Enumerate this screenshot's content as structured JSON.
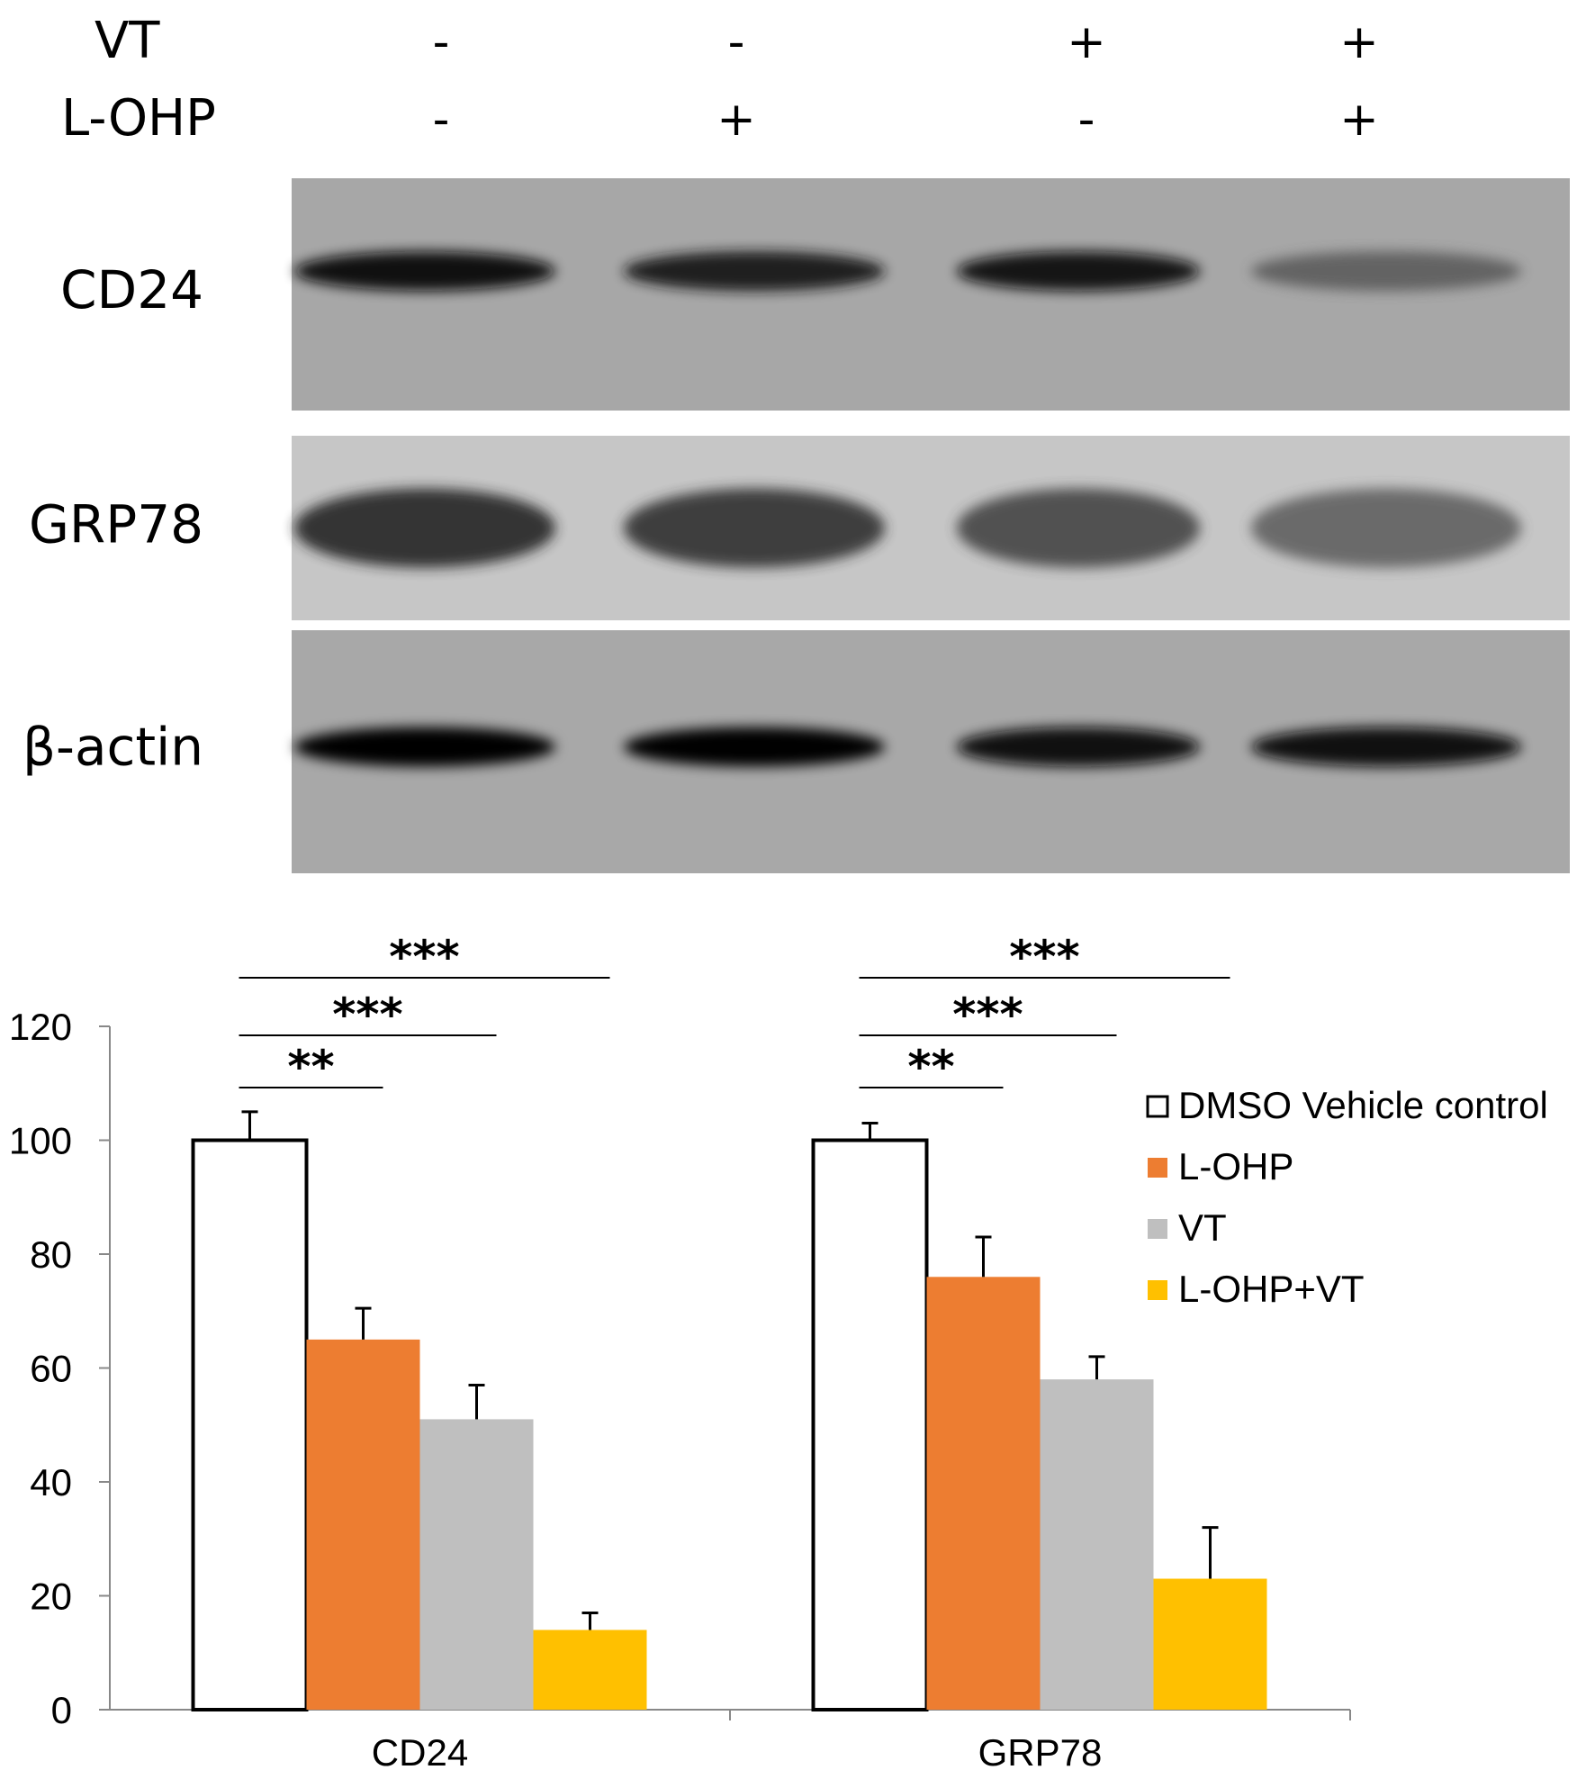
{
  "blot": {
    "treatment_rows": [
      {
        "label": "VT",
        "signs": [
          "-",
          "-",
          "+",
          "+"
        ]
      },
      {
        "label": "L-OHP",
        "signs": [
          "-",
          "+",
          "-",
          "+"
        ]
      }
    ],
    "panels": [
      {
        "label": "CD24",
        "bg": "#a7a7a7",
        "intensities": [
          0.95,
          0.85,
          0.88,
          0.45
        ]
      },
      {
        "label": "GRP78",
        "bg": "#c6c6c6",
        "intensities": [
          0.75,
          0.7,
          0.6,
          0.45
        ]
      },
      {
        "label": "β-actin",
        "bg": "#a8a8a8",
        "intensities": [
          1.0,
          0.98,
          0.95,
          0.95
        ]
      }
    ]
  },
  "chart_data": {
    "type": "bar",
    "categories": [
      "CD24",
      "GRP78"
    ],
    "series": [
      {
        "name": "DMSO Vehicle control",
        "color": "#ffffff",
        "values": [
          100,
          100
        ],
        "errors": [
          5,
          3
        ]
      },
      {
        "name": "L-OHP",
        "color": "#ed7d31",
        "values": [
          65,
          76
        ],
        "errors": [
          5.5,
          7
        ]
      },
      {
        "name": "VT",
        "color": "#bfbfbf",
        "values": [
          51,
          58
        ],
        "errors": [
          6,
          4
        ]
      },
      {
        "name": "L-OHP+VT",
        "color": "#ffc000",
        "values": [
          14,
          23
        ],
        "errors": [
          3,
          9
        ]
      }
    ],
    "ylim": [
      0,
      120
    ],
    "yticks": [
      0,
      20,
      40,
      60,
      80,
      100,
      120
    ],
    "legend_position": "right",
    "significance": [
      {
        "category": 0,
        "from_series": 0,
        "to_series": 1,
        "label": "**"
      },
      {
        "category": 0,
        "from_series": 0,
        "to_series": 2,
        "label": "***"
      },
      {
        "category": 0,
        "from_series": 0,
        "to_series": 3,
        "label": "***"
      },
      {
        "category": 1,
        "from_series": 0,
        "to_series": 1,
        "label": "**"
      },
      {
        "category": 1,
        "from_series": 0,
        "to_series": 2,
        "label": "***"
      },
      {
        "category": 1,
        "from_series": 0,
        "to_series": 3,
        "label": "***"
      }
    ]
  }
}
